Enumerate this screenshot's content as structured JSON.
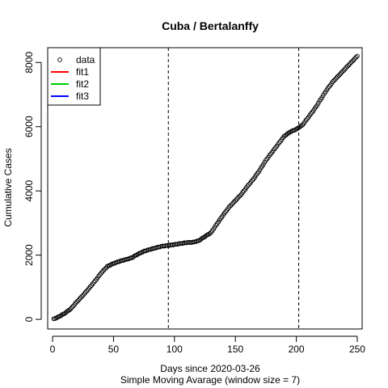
{
  "chart_data": {
    "type": "scatter",
    "title": "Cuba / Bertalanffy",
    "xlabel": "Days since 2020-03-26",
    "subtitle": "Simple Moving Avarage (window size = 7)",
    "ylabel": "Cumulative Cases",
    "xlim": [
      -4,
      254
    ],
    "ylim": [
      -300,
      8460
    ],
    "xticks": [
      0,
      50,
      100,
      150,
      200,
      250
    ],
    "yticks": [
      0,
      2000,
      4000,
      6000,
      8000
    ],
    "vlines": [
      95,
      202
    ],
    "legend_position": "top-left",
    "legend": [
      {
        "label": "data",
        "kind": "point",
        "color": "#000000"
      },
      {
        "label": "fit1",
        "kind": "line",
        "color": "#ff0000"
      },
      {
        "label": "fit2",
        "kind": "line",
        "color": "#00cd00"
      },
      {
        "label": "fit3",
        "kind": "line",
        "color": "#0000ff"
      }
    ],
    "series": [
      {
        "name": "data",
        "keypoints_x": [
          1,
          5,
          10,
          15,
          20,
          25,
          30,
          35,
          40,
          45,
          50,
          55,
          60,
          65,
          70,
          75,
          80,
          85,
          90,
          95,
          100,
          105,
          110,
          115,
          120,
          125,
          130,
          135,
          140,
          145,
          150,
          155,
          160,
          165,
          170,
          175,
          180,
          185,
          190,
          195,
          200,
          205,
          210,
          215,
          220,
          225,
          230,
          235,
          240,
          245,
          250
        ],
        "keypoints_y": [
          10,
          80,
          190,
          330,
          550,
          750,
          970,
          1200,
          1450,
          1650,
          1740,
          1810,
          1860,
          1920,
          2030,
          2120,
          2180,
          2230,
          2280,
          2300,
          2330,
          2360,
          2390,
          2400,
          2450,
          2580,
          2700,
          2980,
          3250,
          3500,
          3700,
          3900,
          4150,
          4380,
          4650,
          4950,
          5200,
          5450,
          5700,
          5840,
          5920,
          6050,
          6300,
          6550,
          6850,
          7150,
          7400,
          7600,
          7800,
          8000,
          8200
        ]
      }
    ]
  }
}
